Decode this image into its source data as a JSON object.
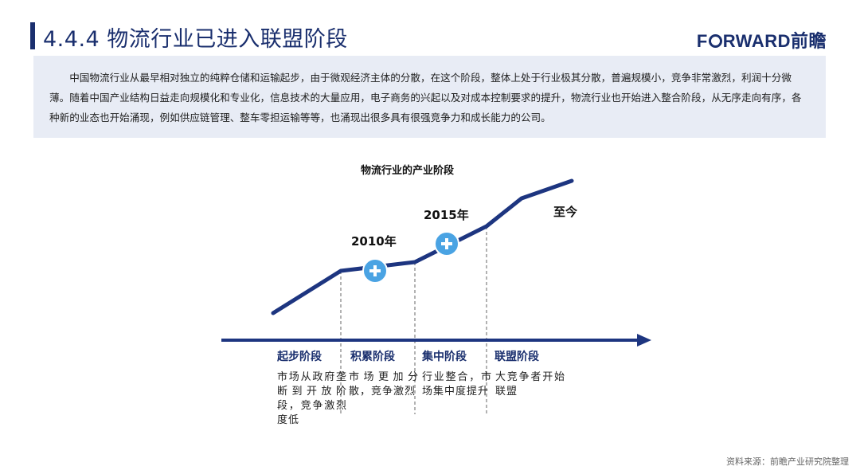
{
  "header": {
    "title": "4.4.4 物流行业已进入联盟阶段",
    "logo_pre": "F",
    "logo_post": "RWARD前瞻"
  },
  "description": "中国物流行业从最早相对独立的纯粹仓储和运输起步，由于微观经济主体的分散，在这个阶段，整体上处于行业极其分散，普遍规模小，竞争非常激烈，利润十分微薄。随着中国产业结构日益走向规模化和专业化，信息技术的大量应用，电子商务的兴起以及对成本控制要求的提升，物流行业也开始进入整合阶段，从无序走向有序，各种新的业态也开始涌现，例如供应链管理、整车零担运输等等，也涌现出很多具有很强竞争力和成长能力的公司。",
  "diagram": {
    "title": "物流行业的产业阶段",
    "milestones": [
      {
        "label": "2010年"
      },
      {
        "label": "2015年"
      },
      {
        "label": "至今"
      }
    ],
    "stages": [
      {
        "name": "起步阶段",
        "desc": "市场从政府垄断到开放阶段，竞争激烈度低"
      },
      {
        "name": "积累阶段",
        "desc": "市场更加分散，竞争激烈"
      },
      {
        "name": "集中阶段",
        "desc": "行业整合，市场集中度提升"
      },
      {
        "name": "联盟阶段",
        "desc": "大竞争者开始联盟"
      }
    ]
  },
  "colors": {
    "primary": "#1a2f6e",
    "line": "#1d3580",
    "marker": "#4aa3e3",
    "desc_bg": "#e8ecf5"
  },
  "source": "资料来源：前瞻产业研究院整理"
}
